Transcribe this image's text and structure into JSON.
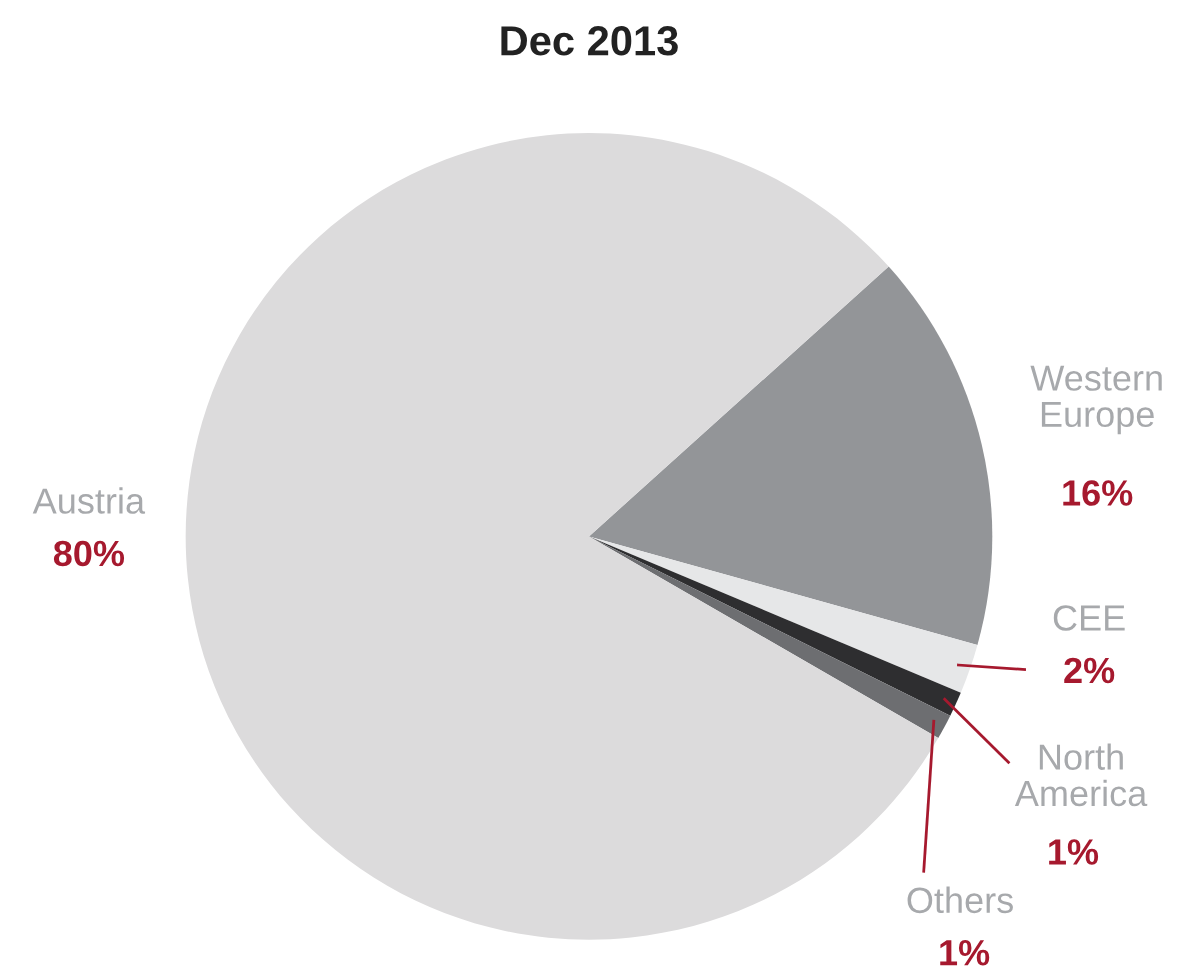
{
  "chart_data": {
    "type": "pie",
    "title": "Dec 2013",
    "categories": [
      "Western Europe",
      "CEE",
      "North America",
      "Others",
      "Austria"
    ],
    "values": [
      16,
      2,
      1,
      1,
      80
    ],
    "colors": [
      "#939598",
      "#e6e7e8",
      "#2e2e30",
      "#6d6e71",
      "#dcdbdc"
    ],
    "value_labels": [
      "16%",
      "2%",
      "1%",
      "1%",
      "80%"
    ],
    "legend": false
  }
}
